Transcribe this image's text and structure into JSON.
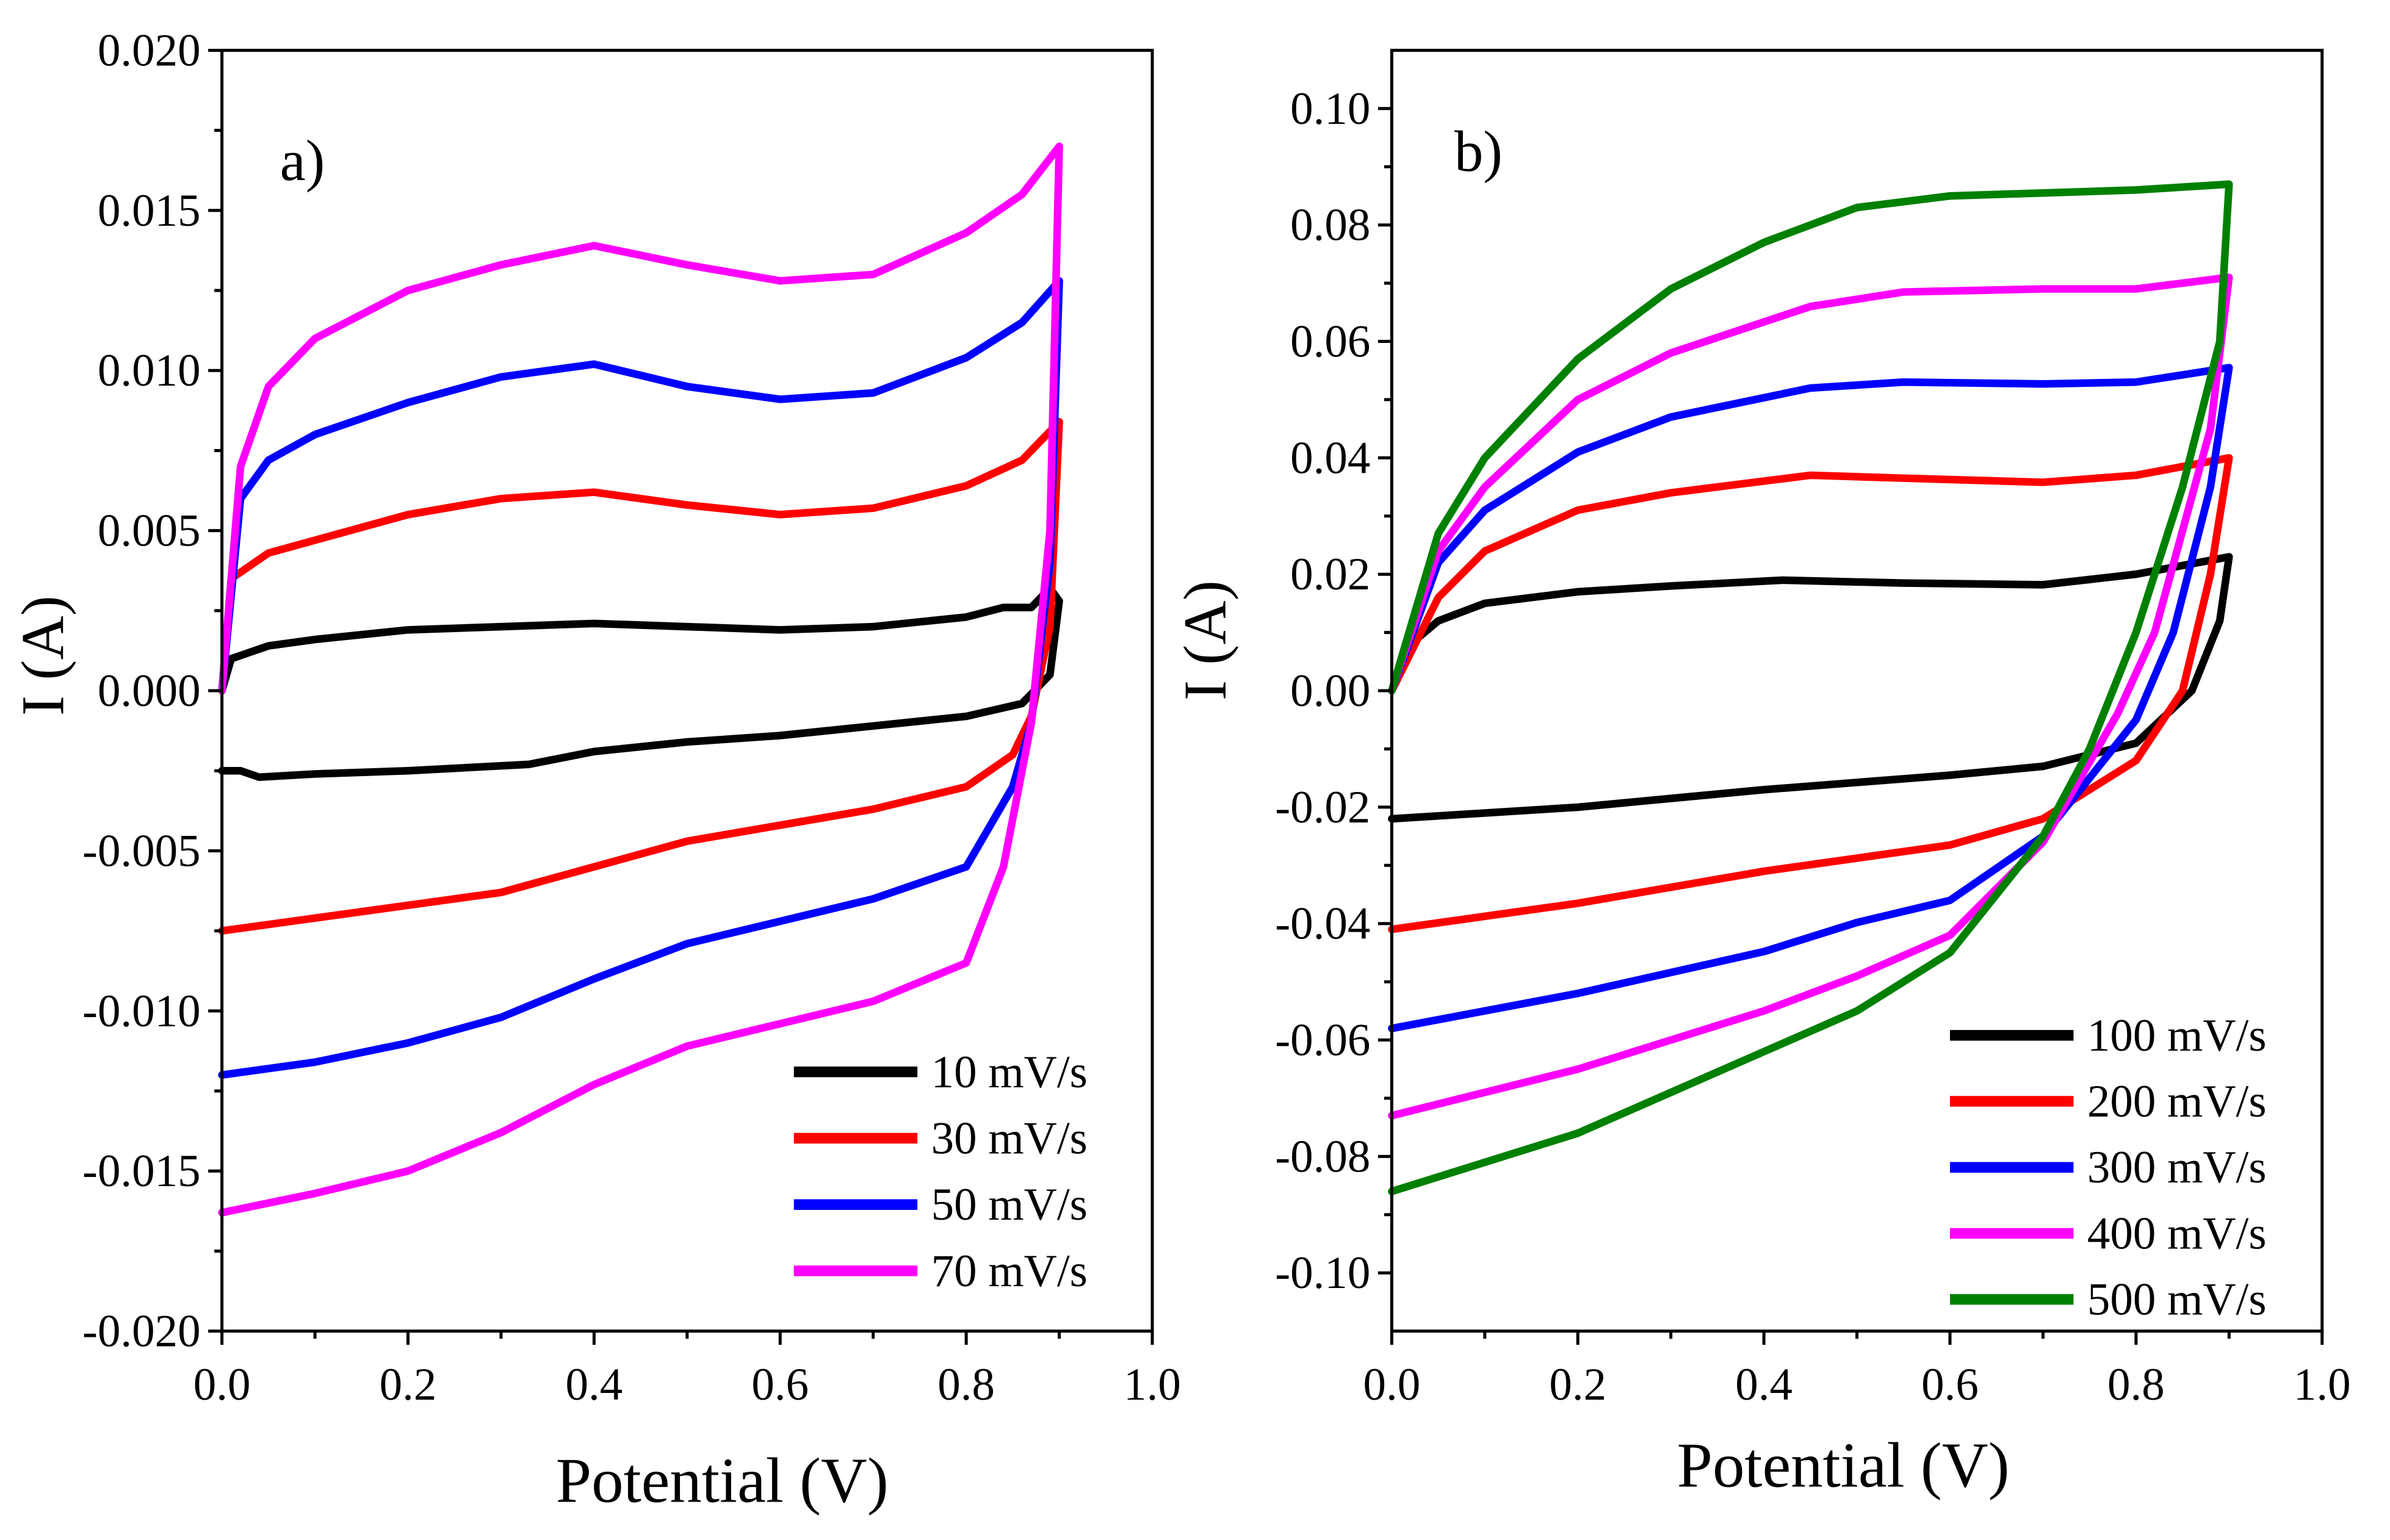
{
  "chart_data": [
    {
      "type": "line",
      "panel_label": "a)",
      "xlabel": "Potential (V)",
      "ylabel": "I (A)",
      "xlim": [
        0.0,
        1.0
      ],
      "ylim": [
        -0.02,
        0.02
      ],
      "xticks": [
        "0.0",
        "0.2",
        "0.4",
        "0.6",
        "0.8",
        "1.0"
      ],
      "xtick_values": [
        0,
        0.2,
        0.4,
        0.6,
        0.8,
        1.0
      ],
      "yticks": [
        "-0.020",
        "-0.015",
        "-0.010",
        "-0.005",
        "0.000",
        "0.005",
        "0.010",
        "0.015",
        "0.020"
      ],
      "ytick_values": [
        -0.02,
        -0.015,
        -0.01,
        -0.005,
        0,
        0.005,
        0.01,
        0.015,
        0.02
      ],
      "x_minor_step": 0.1,
      "y_minor_step": 0.0025,
      "legend_placement": "bottom-right",
      "grid": false,
      "series": [
        {
          "name": "10 mV/s",
          "color": "#000000",
          "points": [
            [
              0,
              0
            ],
            [
              0.01,
              0.001
            ],
            [
              0.05,
              0.0014
            ],
            [
              0.1,
              0.0016
            ],
            [
              0.2,
              0.0019
            ],
            [
              0.3,
              0.002
            ],
            [
              0.4,
              0.0021
            ],
            [
              0.5,
              0.002
            ],
            [
              0.6,
              0.0019
            ],
            [
              0.7,
              0.002
            ],
            [
              0.8,
              0.0023
            ],
            [
              0.84,
              0.0026
            ],
            [
              0.87,
              0.0026
            ],
            [
              0.89,
              0.0032
            ],
            [
              0.9,
              0.0028
            ],
            [
              0.89,
              0.0005
            ],
            [
              0.86,
              -0.0004
            ],
            [
              0.8,
              -0.0008
            ],
            [
              0.7,
              -0.0011
            ],
            [
              0.6,
              -0.0014
            ],
            [
              0.5,
              -0.0016
            ],
            [
              0.4,
              -0.0019
            ],
            [
              0.33,
              -0.0023
            ],
            [
              0.2,
              -0.0025
            ],
            [
              0.1,
              -0.0026
            ],
            [
              0.04,
              -0.0027
            ],
            [
              0.02,
              -0.0025
            ],
            [
              0,
              -0.0025
            ]
          ]
        },
        {
          "name": "30 mV/s",
          "color": "#ff0000",
          "points": [
            [
              0,
              0
            ],
            [
              0.01,
              0.0035
            ],
            [
              0.05,
              0.0043
            ],
            [
              0.1,
              0.0047
            ],
            [
              0.2,
              0.0055
            ],
            [
              0.3,
              0.006
            ],
            [
              0.4,
              0.0062
            ],
            [
              0.5,
              0.0058
            ],
            [
              0.6,
              0.0055
            ],
            [
              0.7,
              0.0057
            ],
            [
              0.8,
              0.0064
            ],
            [
              0.86,
              0.0072
            ],
            [
              0.9,
              0.0084
            ],
            [
              0.89,
              0.002
            ],
            [
              0.87,
              -0.0008
            ],
            [
              0.85,
              -0.002
            ],
            [
              0.8,
              -0.003
            ],
            [
              0.7,
              -0.0037
            ],
            [
              0.6,
              -0.0042
            ],
            [
              0.5,
              -0.0047
            ],
            [
              0.4,
              -0.0055
            ],
            [
              0.3,
              -0.0063
            ],
            [
              0.2,
              -0.0067
            ],
            [
              0.1,
              -0.0071
            ],
            [
              0,
              -0.0075
            ]
          ]
        },
        {
          "name": "50 mV/s",
          "color": "#0000ff",
          "points": [
            [
              0,
              0
            ],
            [
              0.02,
              0.006
            ],
            [
              0.05,
              0.0072
            ],
            [
              0.1,
              0.008
            ],
            [
              0.2,
              0.009
            ],
            [
              0.3,
              0.0098
            ],
            [
              0.4,
              0.0102
            ],
            [
              0.5,
              0.0095
            ],
            [
              0.6,
              0.0091
            ],
            [
              0.7,
              0.0093
            ],
            [
              0.8,
              0.0104
            ],
            [
              0.86,
              0.0115
            ],
            [
              0.9,
              0.0128
            ],
            [
              0.89,
              0.004
            ],
            [
              0.87,
              -0.001
            ],
            [
              0.85,
              -0.003
            ],
            [
              0.8,
              -0.0055
            ],
            [
              0.7,
              -0.0065
            ],
            [
              0.6,
              -0.0072
            ],
            [
              0.5,
              -0.0079
            ],
            [
              0.4,
              -0.009
            ],
            [
              0.3,
              -0.0102
            ],
            [
              0.2,
              -0.011
            ],
            [
              0.1,
              -0.0116
            ],
            [
              0,
              -0.012
            ]
          ]
        },
        {
          "name": "70 mV/s",
          "color": "#ff00ff",
          "points": [
            [
              0,
              0
            ],
            [
              0.02,
              0.007
            ],
            [
              0.05,
              0.0095
            ],
            [
              0.1,
              0.011
            ],
            [
              0.2,
              0.0125
            ],
            [
              0.3,
              0.0133
            ],
            [
              0.4,
              0.0139
            ],
            [
              0.5,
              0.0133
            ],
            [
              0.6,
              0.0128
            ],
            [
              0.7,
              0.013
            ],
            [
              0.8,
              0.0143
            ],
            [
              0.86,
              0.0155
            ],
            [
              0.9,
              0.017
            ],
            [
              0.89,
              0.005
            ],
            [
              0.87,
              -0.001
            ],
            [
              0.84,
              -0.0055
            ],
            [
              0.8,
              -0.0085
            ],
            [
              0.7,
              -0.0097
            ],
            [
              0.6,
              -0.0104
            ],
            [
              0.5,
              -0.0111
            ],
            [
              0.4,
              -0.0123
            ],
            [
              0.3,
              -0.0138
            ],
            [
              0.2,
              -0.015
            ],
            [
              0.1,
              -0.0157
            ],
            [
              0,
              -0.0163
            ]
          ]
        }
      ]
    },
    {
      "type": "line",
      "panel_label": "b)",
      "xlabel": "Potential (V)",
      "ylabel": "I (A)",
      "xlim": [
        0.0,
        1.0
      ],
      "ylim": [
        -0.11,
        0.11
      ],
      "xticks": [
        "0.0",
        "0.2",
        "0.4",
        "0.6",
        "0.8",
        "1.0"
      ],
      "xtick_values": [
        0,
        0.2,
        0.4,
        0.6,
        0.8,
        1.0
      ],
      "yticks": [
        "-0.10",
        "-0.08",
        "-0.06",
        "-0.04",
        "-0.02",
        "0.00",
        "0.02",
        "0.04",
        "0.06",
        "0.08",
        "0.10"
      ],
      "ytick_values": [
        -0.1,
        -0.08,
        -0.06,
        -0.04,
        -0.02,
        0,
        0.02,
        0.04,
        0.06,
        0.08,
        0.1
      ],
      "x_minor_step": 0.1,
      "y_minor_step": 0.01,
      "legend_placement": "bottom-right",
      "grid": false,
      "series": [
        {
          "name": "100 mV/s",
          "color": "#000000",
          "points": [
            [
              0,
              0
            ],
            [
              0.02,
              0.008
            ],
            [
              0.05,
              0.012
            ],
            [
              0.1,
              0.015
            ],
            [
              0.2,
              0.017
            ],
            [
              0.3,
              0.018
            ],
            [
              0.42,
              0.019
            ],
            [
              0.55,
              0.0185
            ],
            [
              0.7,
              0.0182
            ],
            [
              0.8,
              0.02
            ],
            [
              0.9,
              0.023
            ],
            [
              0.89,
              0.012
            ],
            [
              0.86,
              0.0
            ],
            [
              0.8,
              -0.009
            ],
            [
              0.7,
              -0.013
            ],
            [
              0.6,
              -0.0145
            ],
            [
              0.4,
              -0.017
            ],
            [
              0.2,
              -0.02
            ],
            [
              0,
              -0.022
            ]
          ]
        },
        {
          "name": "200 mV/s",
          "color": "#ff0000",
          "points": [
            [
              0,
              0
            ],
            [
              0.05,
              0.016
            ],
            [
              0.1,
              0.024
            ],
            [
              0.2,
              0.031
            ],
            [
              0.3,
              0.034
            ],
            [
              0.45,
              0.037
            ],
            [
              0.55,
              0.0365
            ],
            [
              0.7,
              0.0358
            ],
            [
              0.8,
              0.037
            ],
            [
              0.9,
              0.04
            ],
            [
              0.88,
              0.02
            ],
            [
              0.85,
              0.0
            ],
            [
              0.8,
              -0.012
            ],
            [
              0.7,
              -0.022
            ],
            [
              0.6,
              -0.0265
            ],
            [
              0.4,
              -0.031
            ],
            [
              0.2,
              -0.0365
            ],
            [
              0,
              -0.041
            ]
          ]
        },
        {
          "name": "300 mV/s",
          "color": "#0000ff",
          "points": [
            [
              0,
              0
            ],
            [
              0.05,
              0.022
            ],
            [
              0.1,
              0.031
            ],
            [
              0.2,
              0.041
            ],
            [
              0.3,
              0.047
            ],
            [
              0.45,
              0.052
            ],
            [
              0.55,
              0.053
            ],
            [
              0.7,
              0.0527
            ],
            [
              0.8,
              0.053
            ],
            [
              0.9,
              0.0555
            ],
            [
              0.88,
              0.035
            ],
            [
              0.84,
              0.01
            ],
            [
              0.8,
              -0.005
            ],
            [
              0.7,
              -0.025
            ],
            [
              0.6,
              -0.036
            ],
            [
              0.5,
              -0.0398
            ],
            [
              0.4,
              -0.0448
            ],
            [
              0.2,
              -0.052
            ],
            [
              0,
              -0.058
            ]
          ]
        },
        {
          "name": "400 mV/s",
          "color": "#ff00ff",
          "points": [
            [
              0,
              0
            ],
            [
              0.05,
              0.024
            ],
            [
              0.1,
              0.035
            ],
            [
              0.2,
              0.05
            ],
            [
              0.3,
              0.058
            ],
            [
              0.45,
              0.066
            ],
            [
              0.55,
              0.0685
            ],
            [
              0.7,
              0.069
            ],
            [
              0.8,
              0.069
            ],
            [
              0.9,
              0.071
            ],
            [
              0.88,
              0.045
            ],
            [
              0.82,
              0.01
            ],
            [
              0.78,
              -0.004
            ],
            [
              0.7,
              -0.026
            ],
            [
              0.6,
              -0.042
            ],
            [
              0.5,
              -0.049
            ],
            [
              0.4,
              -0.055
            ],
            [
              0.2,
              -0.065
            ],
            [
              0,
              -0.073
            ]
          ]
        },
        {
          "name": "500 mV/s",
          "color": "#008000",
          "points": [
            [
              0,
              0
            ],
            [
              0.05,
              0.027
            ],
            [
              0.1,
              0.04
            ],
            [
              0.2,
              0.057
            ],
            [
              0.3,
              0.069
            ],
            [
              0.4,
              0.077
            ],
            [
              0.5,
              0.083
            ],
            [
              0.6,
              0.085
            ],
            [
              0.8,
              0.086
            ],
            [
              0.9,
              0.087
            ],
            [
              0.89,
              0.06
            ],
            [
              0.85,
              0.035
            ],
            [
              0.8,
              0.01
            ],
            [
              0.75,
              -0.01
            ],
            [
              0.7,
              -0.025
            ],
            [
              0.6,
              -0.045
            ],
            [
              0.5,
              -0.055
            ],
            [
              0.4,
              -0.062
            ],
            [
              0.2,
              -0.076
            ],
            [
              0,
              -0.086
            ]
          ]
        }
      ]
    }
  ]
}
